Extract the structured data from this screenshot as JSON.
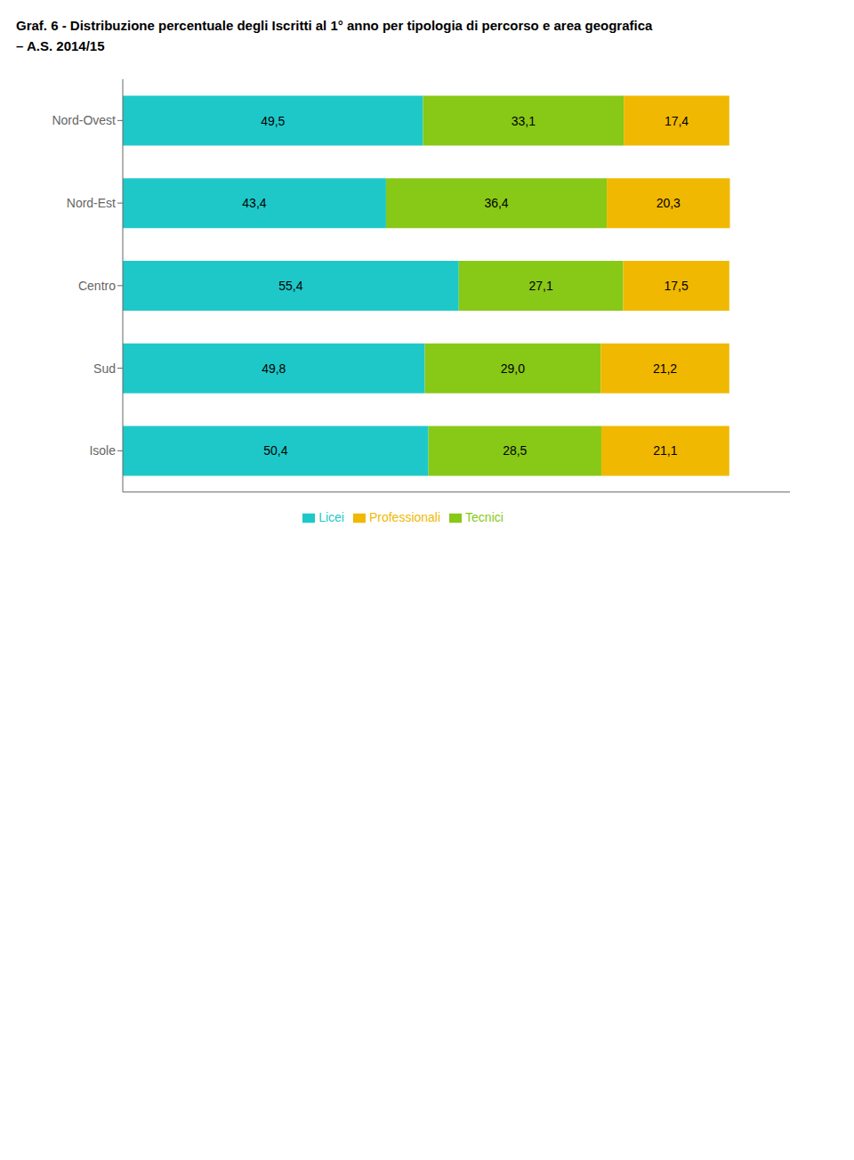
{
  "chart_data": {
    "type": "bar",
    "title": "Graf. 6 - Distribuzione percentuale degli Iscritti al 1° anno per tipologia di percorso e area geografica\n– A.S. 2014/15",
    "orientation": "horizontal",
    "stacked": true,
    "data_labels": true,
    "grid": false,
    "legend": "bottom",
    "tick_labels": "y",
    "categories": [
      "Nord-Ovest",
      "Nord-Est",
      "Centro",
      "Sud",
      "Isole"
    ],
    "xlim": [
      0,
      110
    ],
    "series": [
      {
        "name": "Licei",
        "color": "#1ec8c8",
        "values": [
          49.5,
          43.4,
          55.4,
          49.8,
          50.4
        ],
        "value_labels": [
          "49,5",
          "43,4",
          "55,4",
          "49,8",
          "50,4"
        ]
      },
      {
        "name": "Tecnici",
        "color": "#88c817",
        "values": [
          33.1,
          36.4,
          27.1,
          29.0,
          28.5
        ],
        "value_labels": [
          "33,1",
          "36,4",
          "27,1",
          "29,0",
          "28,5"
        ]
      },
      {
        "name": "Professionali",
        "color": "#f0b800",
        "values": [
          17.4,
          20.3,
          17.5,
          21.2,
          21.1
        ],
        "value_labels": [
          "17,4",
          "20,3",
          "17,5",
          "21,2",
          "21,1"
        ]
      }
    ]
  }
}
